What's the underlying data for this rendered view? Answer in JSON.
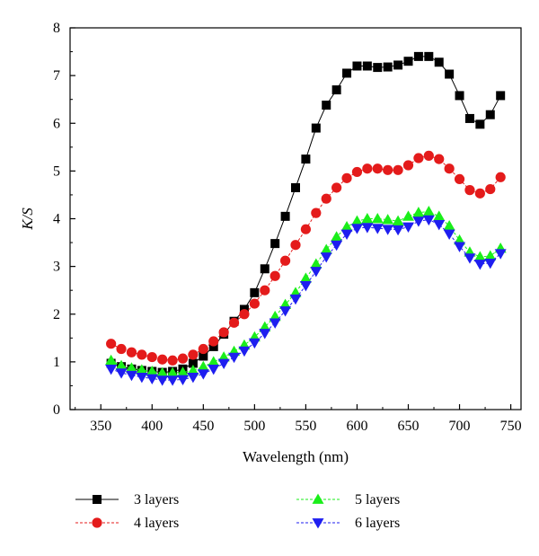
{
  "chart_data": {
    "type": "line",
    "title": "",
    "xlabel": "Wavelength (nm)",
    "ylabel": "K/S",
    "xlim": [
      320,
      760
    ],
    "ylim": [
      0,
      8
    ],
    "xticks": [
      350,
      400,
      450,
      500,
      550,
      600,
      650,
      700,
      750
    ],
    "yticks": [
      0,
      1,
      2,
      3,
      4,
      5,
      6,
      7,
      8
    ],
    "grid": false,
    "legend_position": "bottom",
    "x": [
      360,
      370,
      380,
      390,
      400,
      410,
      420,
      430,
      440,
      450,
      460,
      470,
      480,
      490,
      500,
      510,
      520,
      530,
      540,
      550,
      560,
      570,
      580,
      590,
      600,
      610,
      620,
      630,
      640,
      650,
      660,
      670,
      680,
      690,
      700,
      710,
      720,
      730,
      740
    ],
    "series": [
      {
        "name": "3 layers",
        "color": "#000000",
        "marker": "square",
        "values": [
          0.97,
          0.9,
          0.85,
          0.82,
          0.8,
          0.78,
          0.8,
          0.85,
          0.97,
          1.12,
          1.32,
          1.58,
          1.85,
          2.1,
          2.45,
          2.95,
          3.48,
          4.05,
          4.65,
          5.25,
          5.9,
          6.38,
          6.7,
          7.05,
          7.2,
          7.2,
          7.17,
          7.18,
          7.22,
          7.3,
          7.4,
          7.4,
          7.28,
          7.03,
          6.58,
          6.1,
          5.98,
          6.18,
          6.58
        ]
      },
      {
        "name": "4 layers",
        "color": "#e41b1b",
        "marker": "circle",
        "values": [
          1.38,
          1.27,
          1.2,
          1.15,
          1.1,
          1.05,
          1.03,
          1.07,
          1.15,
          1.27,
          1.43,
          1.62,
          1.82,
          2.0,
          2.22,
          2.5,
          2.8,
          3.12,
          3.45,
          3.78,
          4.12,
          4.42,
          4.65,
          4.85,
          4.98,
          5.05,
          5.05,
          5.02,
          5.02,
          5.12,
          5.27,
          5.32,
          5.25,
          5.05,
          4.83,
          4.6,
          4.53,
          4.62,
          4.87
        ]
      },
      {
        "name": "5 layers",
        "color": "#1aee1a",
        "marker": "triangle-up",
        "values": [
          1.03,
          0.92,
          0.87,
          0.83,
          0.8,
          0.77,
          0.77,
          0.78,
          0.82,
          0.9,
          1.0,
          1.1,
          1.22,
          1.35,
          1.52,
          1.73,
          1.95,
          2.2,
          2.45,
          2.75,
          3.05,
          3.35,
          3.62,
          3.83,
          3.95,
          4.0,
          4.0,
          3.98,
          3.95,
          4.05,
          4.13,
          4.15,
          4.05,
          3.85,
          3.55,
          3.3,
          3.2,
          3.22,
          3.38
        ]
      },
      {
        "name": "6 layers",
        "color": "#1e1ef0",
        "marker": "triangle-down",
        "values": [
          0.85,
          0.77,
          0.72,
          0.68,
          0.65,
          0.62,
          0.62,
          0.63,
          0.68,
          0.75,
          0.85,
          0.97,
          1.1,
          1.23,
          1.4,
          1.6,
          1.82,
          2.07,
          2.32,
          2.6,
          2.9,
          3.2,
          3.45,
          3.68,
          3.8,
          3.82,
          3.8,
          3.78,
          3.77,
          3.83,
          3.95,
          3.98,
          3.88,
          3.68,
          3.42,
          3.18,
          3.05,
          3.07,
          3.27
        ]
      }
    ]
  }
}
